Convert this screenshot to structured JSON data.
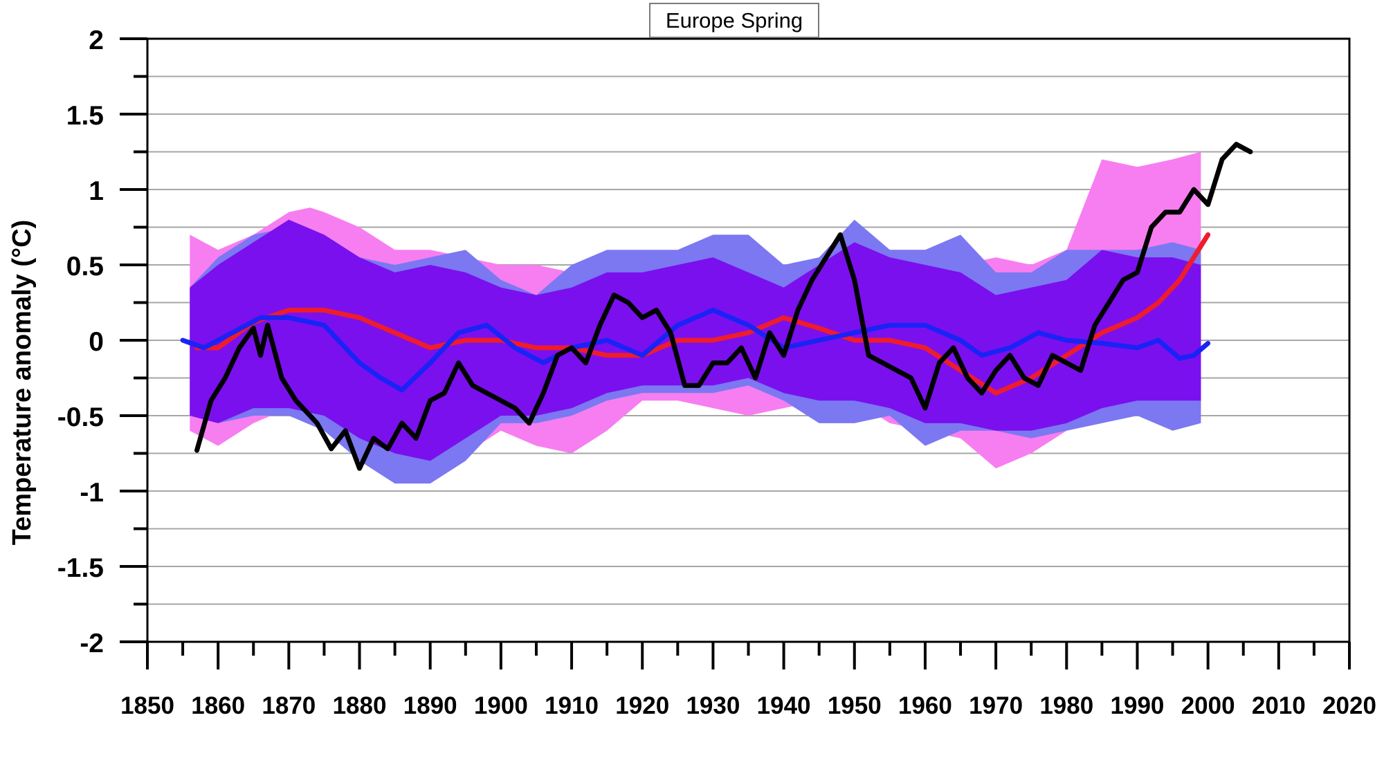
{
  "chart_data": {
    "type": "line",
    "title": "Europe Spring",
    "ylabel": "Temperature anomaly (°C)",
    "xlabel": "",
    "xlim": [
      1850,
      2020
    ],
    "ylim": [
      -2,
      2
    ],
    "x_ticks": [
      1850,
      1860,
      1870,
      1880,
      1890,
      1900,
      1910,
      1920,
      1930,
      1940,
      1950,
      1960,
      1970,
      1980,
      1990,
      2000,
      2010,
      2020
    ],
    "y_ticks": [
      2,
      1.5,
      1,
      0.5,
      0,
      -0.5,
      -1,
      -1.5,
      -2
    ],
    "y_tick_labels": [
      "2",
      "1.5",
      "1",
      "0.5",
      "0",
      "-0.5",
      "-1",
      "-1.5",
      "-2"
    ],
    "grid": "horizontal",
    "colors": {
      "pink_band": "#f77ef0",
      "blue_band": "#7b78f2",
      "overlap_band": "#7a10ee",
      "red_line": "#ee1c2c",
      "blue_line": "#1a23f5",
      "black_line": "#000000"
    },
    "bands": [
      {
        "color_key": "pink_band",
        "x": [
          1856,
          1860,
          1865,
          1870,
          1873,
          1875,
          1880,
          1885,
          1890,
          1895,
          1900,
          1905,
          1910,
          1915,
          1920,
          1925,
          1930,
          1935,
          1940,
          1945,
          1950,
          1955,
          1960,
          1965,
          1970,
          1975,
          1980,
          1985,
          1990,
          1995,
          1999
        ],
        "upper": [
          0.7,
          0.6,
          0.7,
          0.85,
          0.88,
          0.85,
          0.75,
          0.6,
          0.6,
          0.55,
          0.5,
          0.5,
          0.45,
          0.5,
          0.5,
          0.55,
          0.55,
          0.5,
          0.4,
          0.55,
          0.7,
          0.6,
          0.6,
          0.5,
          0.55,
          0.5,
          0.6,
          1.2,
          1.15,
          1.2,
          1.25
        ],
        "lower": [
          -0.6,
          -0.7,
          -0.55,
          -0.45,
          -0.5,
          -0.6,
          -0.75,
          -0.8,
          -0.8,
          -0.75,
          -0.6,
          -0.7,
          -0.75,
          -0.6,
          -0.4,
          -0.4,
          -0.45,
          -0.5,
          -0.45,
          -0.4,
          -0.4,
          -0.55,
          -0.6,
          -0.65,
          -0.85,
          -0.75,
          -0.6,
          -0.5,
          -0.45,
          -0.4,
          -0.45
        ]
      },
      {
        "color_key": "blue_band",
        "x": [
          1856,
          1860,
          1865,
          1870,
          1875,
          1880,
          1885,
          1890,
          1895,
          1900,
          1905,
          1910,
          1915,
          1920,
          1925,
          1930,
          1935,
          1940,
          1945,
          1950,
          1955,
          1960,
          1965,
          1970,
          1975,
          1980,
          1985,
          1990,
          1995,
          1999
        ],
        "upper": [
          0.35,
          0.55,
          0.7,
          0.75,
          0.7,
          0.55,
          0.5,
          0.55,
          0.6,
          0.4,
          0.3,
          0.5,
          0.6,
          0.6,
          0.6,
          0.7,
          0.7,
          0.5,
          0.55,
          0.8,
          0.6,
          0.6,
          0.7,
          0.45,
          0.45,
          0.6,
          0.6,
          0.6,
          0.65,
          0.6
        ],
        "lower": [
          -0.5,
          -0.55,
          -0.5,
          -0.5,
          -0.6,
          -0.8,
          -0.95,
          -0.95,
          -0.8,
          -0.55,
          -0.55,
          -0.5,
          -0.4,
          -0.35,
          -0.35,
          -0.35,
          -0.3,
          -0.4,
          -0.55,
          -0.55,
          -0.5,
          -0.7,
          -0.6,
          -0.6,
          -0.65,
          -0.6,
          -0.55,
          -0.5,
          -0.6,
          -0.55
        ]
      },
      {
        "color_key": "overlap_band",
        "x": [
          1856,
          1860,
          1865,
          1870,
          1875,
          1880,
          1885,
          1890,
          1895,
          1900,
          1905,
          1910,
          1915,
          1920,
          1925,
          1930,
          1935,
          1940,
          1945,
          1950,
          1955,
          1960,
          1965,
          1970,
          1975,
          1980,
          1985,
          1990,
          1995,
          1999
        ],
        "upper": [
          0.35,
          0.5,
          0.65,
          0.8,
          0.7,
          0.55,
          0.45,
          0.5,
          0.45,
          0.35,
          0.3,
          0.35,
          0.45,
          0.45,
          0.5,
          0.55,
          0.45,
          0.35,
          0.5,
          0.65,
          0.55,
          0.5,
          0.45,
          0.3,
          0.35,
          0.4,
          0.6,
          0.55,
          0.55,
          0.5
        ],
        "lower": [
          -0.5,
          -0.55,
          -0.45,
          -0.45,
          -0.5,
          -0.65,
          -0.75,
          -0.8,
          -0.65,
          -0.5,
          -0.5,
          -0.45,
          -0.35,
          -0.3,
          -0.3,
          -0.3,
          -0.25,
          -0.35,
          -0.4,
          -0.4,
          -0.45,
          -0.55,
          -0.55,
          -0.6,
          -0.6,
          -0.55,
          -0.45,
          -0.4,
          -0.4,
          -0.4
        ]
      }
    ],
    "series": [
      {
        "color_key": "red_line",
        "x": [
          1857,
          1860,
          1865,
          1870,
          1875,
          1880,
          1885,
          1890,
          1895,
          1900,
          1905,
          1910,
          1915,
          1920,
          1925,
          1930,
          1935,
          1940,
          1945,
          1950,
          1955,
          1960,
          1965,
          1970,
          1975,
          1980,
          1985,
          1990,
          1993,
          1996,
          2000
        ],
        "y": [
          -0.05,
          -0.05,
          0.12,
          0.2,
          0.2,
          0.15,
          0.05,
          -0.05,
          0.0,
          0.0,
          -0.05,
          -0.05,
          -0.1,
          -0.1,
          0.0,
          0.0,
          0.05,
          0.15,
          0.08,
          0.0,
          0.0,
          -0.05,
          -0.2,
          -0.35,
          -0.25,
          -0.1,
          0.05,
          0.15,
          0.25,
          0.4,
          0.7
        ]
      },
      {
        "color_key": "blue_line",
        "x": [
          1855,
          1858,
          1862,
          1866,
          1870,
          1875,
          1880,
          1883,
          1886,
          1890,
          1894,
          1898,
          1902,
          1906,
          1910,
          1915,
          1920,
          1925,
          1930,
          1935,
          1940,
          1945,
          1950,
          1955,
          1960,
          1965,
          1968,
          1972,
          1976,
          1980,
          1985,
          1990,
          1993,
          1996,
          1998,
          2000
        ],
        "y": [
          0.0,
          -0.05,
          0.05,
          0.15,
          0.15,
          0.1,
          -0.15,
          -0.25,
          -0.33,
          -0.15,
          0.05,
          0.1,
          -0.05,
          -0.15,
          -0.05,
          0.0,
          -0.1,
          0.1,
          0.2,
          0.1,
          -0.05,
          0.0,
          0.05,
          0.1,
          0.1,
          0.0,
          -0.1,
          -0.05,
          0.05,
          0.0,
          -0.02,
          -0.05,
          0.0,
          -0.12,
          -0.1,
          -0.02
        ]
      },
      {
        "color_key": "black_line",
        "x": [
          1857,
          1859,
          1861,
          1863,
          1865,
          1866,
          1867,
          1869,
          1871,
          1874,
          1876,
          1878,
          1880,
          1882,
          1884,
          1886,
          1888,
          1890,
          1892,
          1894,
          1896,
          1898,
          1900,
          1902,
          1904,
          1906,
          1908,
          1910,
          1912,
          1914,
          1916,
          1918,
          1920,
          1922,
          1924,
          1926,
          1928,
          1930,
          1932,
          1934,
          1936,
          1938,
          1940,
          1942,
          1944,
          1946,
          1948,
          1950,
          1952,
          1954,
          1956,
          1958,
          1960,
          1962,
          1964,
          1966,
          1968,
          1970,
          1972,
          1974,
          1976,
          1978,
          1980,
          1982,
          1984,
          1986,
          1988,
          1990,
          1992,
          1994,
          1996,
          1998,
          2000,
          2002,
          2004,
          2006
        ],
        "y": [
          -0.73,
          -0.4,
          -0.25,
          -0.05,
          0.08,
          -0.1,
          0.1,
          -0.25,
          -0.4,
          -0.55,
          -0.72,
          -0.6,
          -0.85,
          -0.65,
          -0.72,
          -0.55,
          -0.65,
          -0.4,
          -0.35,
          -0.15,
          -0.3,
          -0.35,
          -0.4,
          -0.45,
          -0.55,
          -0.35,
          -0.1,
          -0.05,
          -0.15,
          0.1,
          0.3,
          0.25,
          0.15,
          0.2,
          0.05,
          -0.3,
          -0.3,
          -0.15,
          -0.15,
          -0.05,
          -0.25,
          0.05,
          -0.1,
          0.2,
          0.4,
          0.55,
          0.7,
          0.4,
          -0.1,
          -0.15,
          -0.2,
          -0.25,
          -0.45,
          -0.15,
          -0.05,
          -0.25,
          -0.35,
          -0.2,
          -0.1,
          -0.25,
          -0.3,
          -0.1,
          -0.15,
          -0.2,
          0.1,
          0.25,
          0.4,
          0.45,
          0.75,
          0.85,
          0.85,
          1.0,
          0.9,
          1.2,
          1.3,
          1.25
        ]
      }
    ]
  }
}
